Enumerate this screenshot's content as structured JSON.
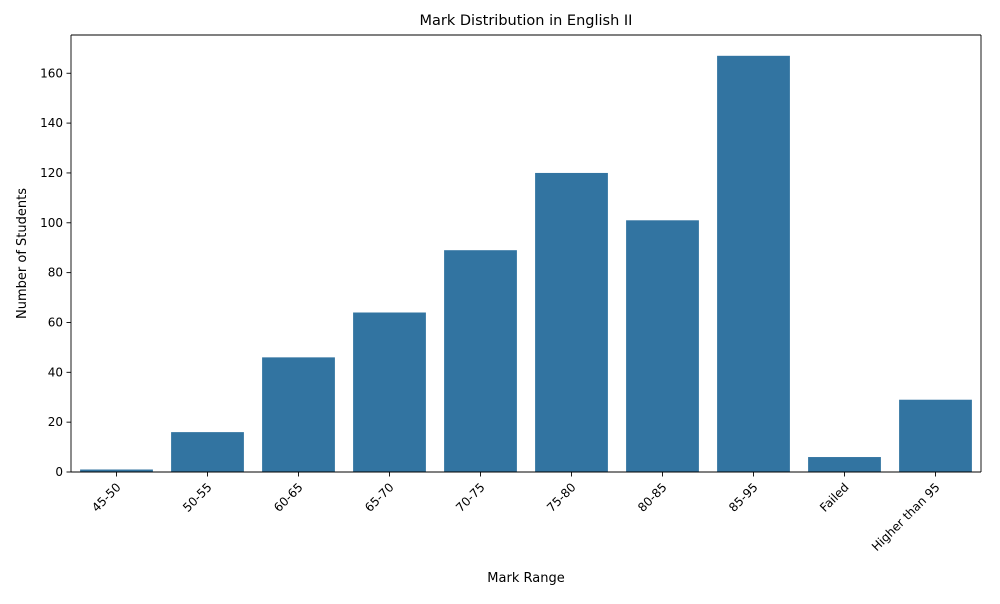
{
  "chart_data": {
    "type": "bar",
    "title": "Mark Distribution in English II",
    "xlabel": "Mark Range",
    "ylabel": "Number of Students",
    "categories": [
      "45-50",
      "50-55",
      "60-65",
      "65-70",
      "70-75",
      "75-80",
      "80-85",
      "85-95",
      "Failed",
      "Higher than 95"
    ],
    "values": [
      1,
      16,
      46,
      64,
      89,
      120,
      101,
      167,
      6,
      29
    ],
    "ylim": [
      0,
      175.35
    ],
    "yticks": [
      0,
      20,
      40,
      60,
      80,
      100,
      120,
      140,
      160
    ],
    "bar_color": "#3274a1",
    "grid": false,
    "legend": "none",
    "x_tick_rotation": "45 degrees"
  }
}
